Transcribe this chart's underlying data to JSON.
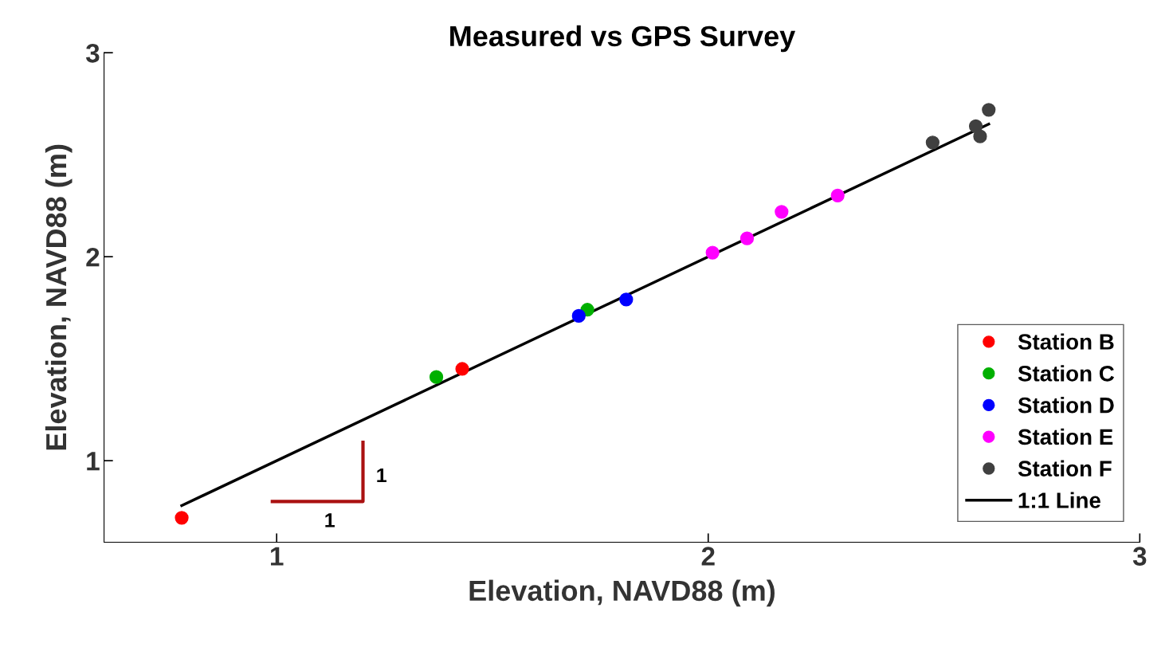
{
  "chart_data": {
    "type": "scatter",
    "title": "Measured vs GPS Survey",
    "xlabel": "Elevation, NAVD88 (m)",
    "ylabel": "Elevation, NAVD88 (m)",
    "xlim": [
      0.6,
      3
    ],
    "ylim": [
      0.6,
      3
    ],
    "xticks": [
      1,
      2,
      3
    ],
    "yticks": [
      1,
      2,
      3
    ],
    "grid": false,
    "legend": "bottom right",
    "series": [
      {
        "name": "Station B",
        "type": "scatter",
        "marker": "circle",
        "color": "#ff0000",
        "x": [
          0.78,
          1.43
        ],
        "values": [
          0.72,
          1.45
        ]
      },
      {
        "name": "Station C",
        "type": "scatter",
        "marker": "circle",
        "color": "#00b000",
        "x": [
          1.37,
          1.72
        ],
        "values": [
          1.41,
          1.74
        ]
      },
      {
        "name": "Station D",
        "type": "scatter",
        "marker": "circle",
        "color": "#0000ff",
        "x": [
          1.7,
          1.81
        ],
        "values": [
          1.71,
          1.79
        ]
      },
      {
        "name": "Station E",
        "type": "scatter",
        "marker": "circle",
        "color": "#ff00ff",
        "x": [
          2.01,
          2.09,
          2.17,
          2.3
        ],
        "values": [
          2.02,
          2.09,
          2.22,
          2.3
        ]
      },
      {
        "name": "Station F",
        "type": "scatter",
        "marker": "circle",
        "color": "#404040",
        "x": [
          2.52,
          2.62,
          2.63,
          2.65
        ],
        "values": [
          2.56,
          2.64,
          2.59,
          2.72
        ]
      },
      {
        "name": "1:1 Line",
        "type": "line",
        "color": "#000000",
        "x": [
          0.78,
          2.65
        ],
        "values": [
          0.78,
          2.65
        ],
        "line_style": "solid"
      }
    ],
    "annotations": [
      "1",
      "1"
    ]
  }
}
